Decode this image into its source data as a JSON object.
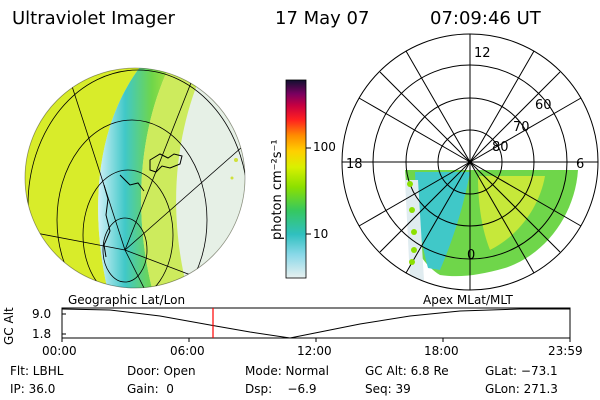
{
  "header": {
    "instrument": "Ultraviolet Imager",
    "date": "17 May 07",
    "time": "07:09:46 UT"
  },
  "colorbar": {
    "unit_label": "photon cm⁻²s⁻¹",
    "ticks": [
      "100",
      "10"
    ],
    "colors": [
      "#101030",
      "#7a0060",
      "#c80040",
      "#ff2020",
      "#ff8c00",
      "#ffd000",
      "#d9f000",
      "#8ce000",
      "#35c860",
      "#30c0c0",
      "#88d8e8",
      "#e8f0f0"
    ]
  },
  "left_panel": {
    "label": "Geographic Lat/Lon"
  },
  "right_panel": {
    "label": "Apex MLat/MLT",
    "mlt_labels": {
      "top": "12",
      "left": "18",
      "right": "6",
      "bottom": "0"
    },
    "lat_labels": [
      "80",
      "70",
      "60"
    ]
  },
  "altitude_plot": {
    "ylabel": "GC Alt",
    "yticks": [
      "9.0",
      "1.8"
    ],
    "xticks": [
      "00:00",
      "06:00",
      "12:00",
      "18:00",
      "23:59"
    ],
    "marker_time": "07:09:46",
    "marker_color": "#ff0000"
  },
  "info": {
    "row1": {
      "flt": "Flt: LBHL",
      "door": "Door: Open",
      "mode": "Mode: Normal",
      "gcalt": "GC Alt: 6.8 Re",
      "glat": "GLat: −73.1"
    },
    "row2": {
      "ip": "IP: 36.0",
      "gain": "Gain:  0",
      "dsp": "Dsp:    −6.9",
      "seq": "Seq: 39",
      "glon": "GLon: 271.3"
    }
  },
  "colors": {
    "aurora_yellow": "#d8ec2a",
    "aurora_green": "#6fd64a",
    "aurora_cyan": "#40c8c8",
    "grid": "#000000"
  }
}
